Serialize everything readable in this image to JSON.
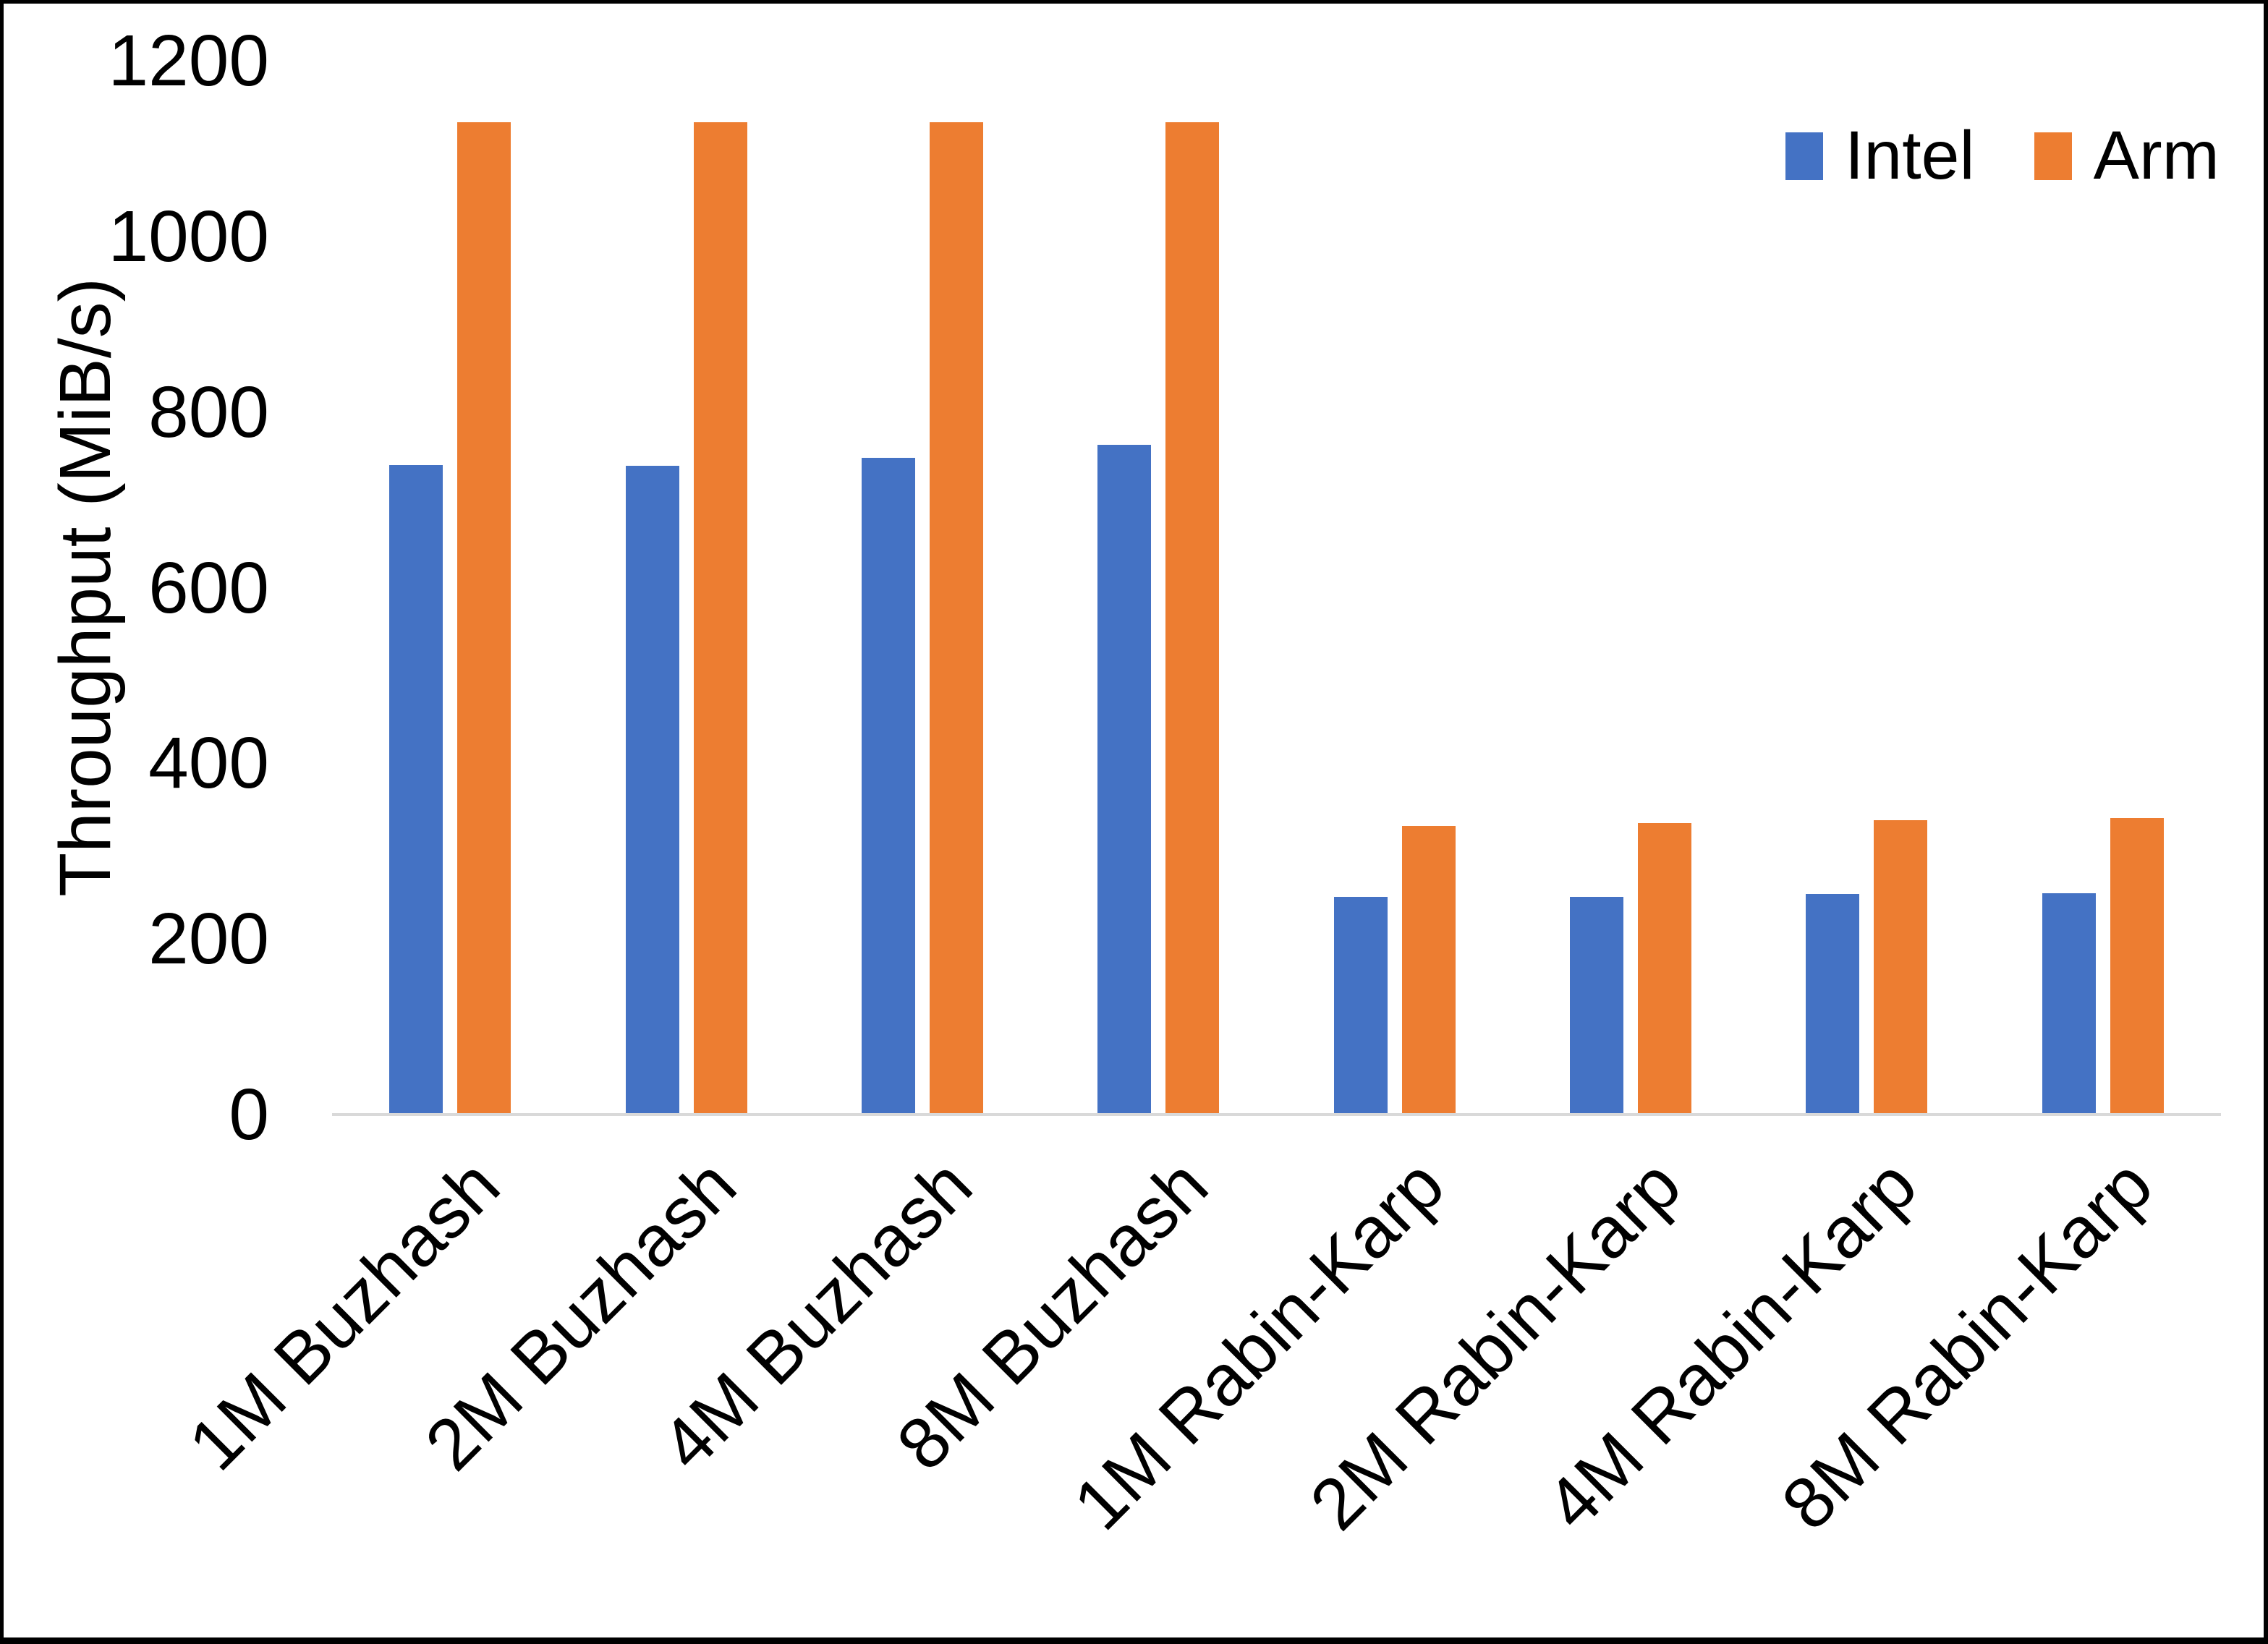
{
  "chart_data": {
    "type": "bar",
    "title": "",
    "xlabel": "",
    "ylabel": "Throughput (MiB/s)",
    "categories": [
      "1M Buzhash",
      "2M Buzhash",
      "4M Buzhash",
      "8M Buzhash",
      "1M Rabin-Karp",
      "2M Rabin-Karp",
      "4M Rabin-Karp",
      "8M Rabin-Karp"
    ],
    "series": [
      {
        "name": "Intel",
        "color": "#4472C4",
        "values": [
          740,
          739,
          748,
          763,
          248,
          248,
          251,
          252
        ]
      },
      {
        "name": "Arm",
        "color": "#ED7D31",
        "values": [
          1130,
          1130,
          1130,
          1130,
          329,
          332,
          335,
          338
        ]
      }
    ],
    "ylim": [
      0,
      1200
    ],
    "yticks": [
      0,
      200,
      400,
      600,
      800,
      1000,
      1200
    ],
    "grid": false,
    "legend_position": "top-right",
    "axis_line_color": "#D9D9D9",
    "text_color": "#000000",
    "x_label_rotation_deg": 45
  }
}
